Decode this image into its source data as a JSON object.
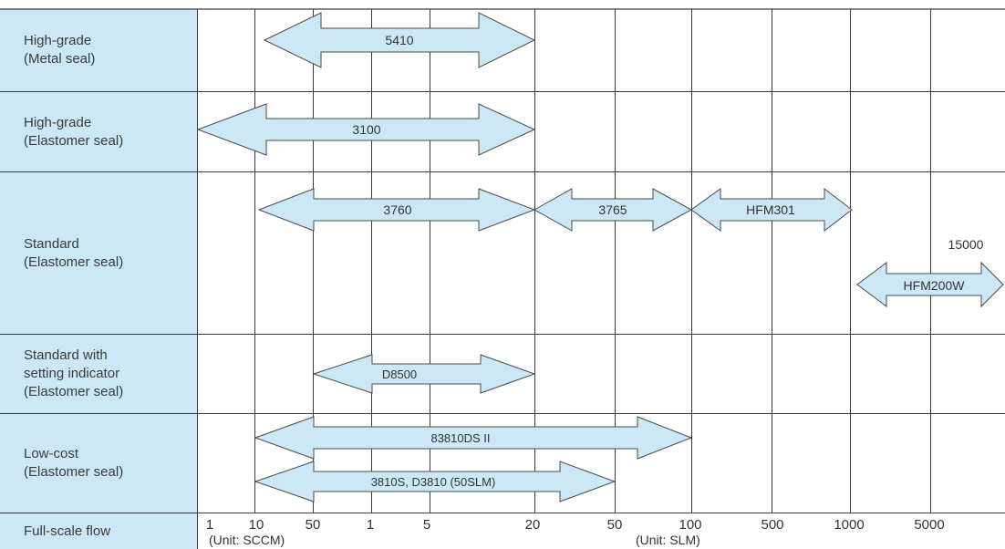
{
  "rows": [
    {
      "label": "High-grade\n(Metal seal)"
    },
    {
      "label": "High-grade\n(Elastomer seal)"
    },
    {
      "label": "Standard\n(Elastomer seal)"
    },
    {
      "label": "Standard with\nsetting indicator\n(Elastomer seal)"
    },
    {
      "label": "Low-cost\n(Elastomer seal)"
    }
  ],
  "axis": {
    "label": "Full-scale flow",
    "ticks": [
      "1",
      "10",
      "50",
      "1",
      "5",
      "20",
      "50",
      "100",
      "500",
      "1000",
      "5000"
    ],
    "unit_left": "(Unit: SCCM)",
    "unit_right": "(Unit: SLM)"
  },
  "products": [
    {
      "name": "5410",
      "from": "10 SCCM",
      "to": "20 SLM"
    },
    {
      "name": "3100",
      "from": "1 SCCM",
      "to": "20 SLM"
    },
    {
      "name": "3760",
      "from": "10 SCCM",
      "to": "20 SLM"
    },
    {
      "name": "3765",
      "from": "20 SLM",
      "to": "100 SLM"
    },
    {
      "name": "HFM301",
      "from": "100 SLM",
      "to": "1000 SLM"
    },
    {
      "name": "HFM200W",
      "from": "1000 SLM",
      "to": "15000 SLM",
      "max_label": "15000"
    },
    {
      "name": "D8500",
      "from": "50 SCCM",
      "to": "20 SLM"
    },
    {
      "name": "83810DS II",
      "from": "10 SCCM",
      "to": "100 SLM"
    },
    {
      "name": "3810S, D3810 (50SLM)",
      "from": "10 SCCM",
      "to": "50 SLM"
    }
  ],
  "colors": {
    "label_bg": "#cce8f6",
    "arrow_fill": "#cce8f6",
    "arrow_stroke": "#4a4a4a",
    "grid": "#3a3a3a",
    "text": "#333333"
  }
}
